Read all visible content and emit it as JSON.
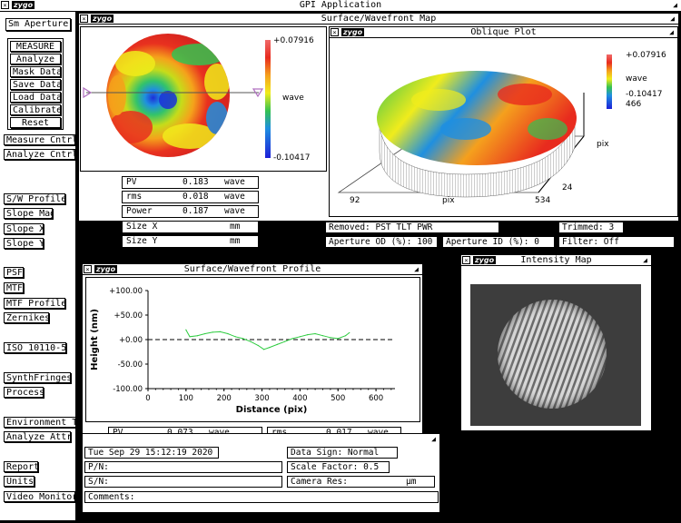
{
  "app": {
    "title": "GPI Application",
    "logo": "zygo"
  },
  "left_panel": {
    "aperture_button": "Sm Aperture",
    "buttons": [
      "MEASURE",
      "Analyze",
      "Mask Data",
      "Save Data",
      "Load Data",
      "Calibrate",
      "Reset"
    ],
    "controls": [
      "Measure Cntrl",
      "Analyze Cntrl"
    ],
    "analysis_buttons": [
      "S/W Profile",
      "Slope Mag",
      "Slope X",
      "Slope Y"
    ],
    "mtf_buttons": [
      "PSF",
      "MTF",
      "MTF Profile",
      "Zernikes"
    ],
    "iso_button": "ISO 10110-5",
    "fringe_buttons": [
      "SynthFringes",
      "Process"
    ],
    "env_buttons": [
      "Environment Te",
      "Analyze Attr"
    ],
    "report_buttons": [
      "Report",
      "Units",
      "Video Monitor"
    ]
  },
  "surface_map": {
    "title": "Surface/Wavefront Map",
    "scale_max": "+0.07916",
    "scale_unit": "wave",
    "scale_min": "-0.10417"
  },
  "oblique": {
    "title": "Oblique Plot",
    "scale_max": "+0.07916",
    "scale_unit": "wave",
    "scale_min": "-0.10417",
    "y_top": "466",
    "y_label": "pix",
    "y_bottom": "24",
    "x_left": "92",
    "x_label": "pix",
    "x_right": "534"
  },
  "stats": {
    "pv_label": "PV",
    "pv_value": "0.183",
    "pv_unit": "wave",
    "rms_label": "rms",
    "rms_value": "0.018",
    "rms_unit": "wave",
    "power_label": "Power",
    "power_value": "0.187",
    "power_unit": "wave",
    "sizex_label": "Size X",
    "sizex_unit": "mm",
    "sizey_label": "Size Y",
    "sizey_unit": "mm"
  },
  "info": {
    "removed": "Removed: PST TLT PWR",
    "trimmed": "Trimmed:  3",
    "aperture_od": "Aperture OD (%): 100",
    "aperture_id": "Aperture ID (%):   0",
    "filter": "Filter:     Off"
  },
  "profile": {
    "title": "Surface/Wavefront Profile",
    "pv_label": "PV",
    "pv_value": "0.073",
    "pv_unit": "wave",
    "rms_label": "rms",
    "rms_value": "0.017",
    "rms_unit": "wave"
  },
  "chart_data": {
    "type": "line",
    "xlabel": "Distance (pix)",
    "ylabel": "Height (nm)",
    "xlim": [
      0,
      650
    ],
    "ylim": [
      -100,
      100
    ],
    "x_ticks": [
      "0",
      "100",
      "200",
      "300",
      "400",
      "500",
      "600"
    ],
    "y_ticks": [
      "+100.00",
      "+50.00",
      "+0.00",
      "-50.00",
      "-100.00"
    ],
    "series": [
      {
        "color": "#2ecc40",
        "x": [
          100,
          110,
          130,
          150,
          170,
          190,
          210,
          230,
          250,
          270,
          290,
          305,
          320,
          340,
          360,
          380,
          400,
          420,
          440,
          460,
          480,
          500,
          520,
          530
        ],
        "y": [
          20,
          6,
          8,
          12,
          15,
          16,
          12,
          6,
          2,
          -4,
          -12,
          -20,
          -16,
          -10,
          -4,
          2,
          6,
          10,
          12,
          8,
          4,
          2,
          8,
          14
        ]
      }
    ]
  },
  "intensity": {
    "title": "Intensity Map"
  },
  "bottom_info": {
    "datetime": "Tue Sep 29 15:12:19 2020",
    "pn": "P/N:",
    "sn": "S/N:",
    "data_sign": "Data Sign:   Normal",
    "scale_factor": "Scale Factor:  0.5",
    "camera_res_label": "Camera Res:",
    "camera_res_unit": "µm",
    "comments": "Comments:"
  },
  "colors": {
    "background": "#000000",
    "window": "#ffffff",
    "profile_line": "#2ecc40",
    "triangle": "#b070c0"
  }
}
